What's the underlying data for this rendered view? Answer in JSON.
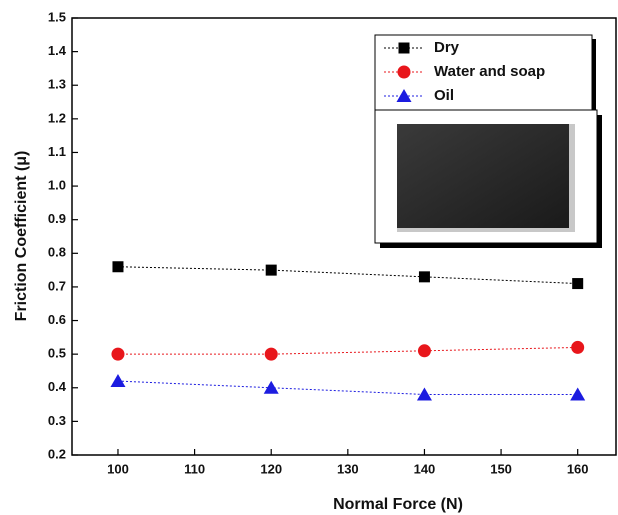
{
  "chart_data": {
    "type": "line",
    "y_label": "Friction Coefficient (μ)",
    "x_label": "Normal Force (N)",
    "x": [
      100,
      120,
      140,
      160
    ],
    "series": [
      {
        "name": "Dry",
        "color": "#000000",
        "marker": "square",
        "values": [
          0.76,
          0.75,
          0.73,
          0.71
        ]
      },
      {
        "name": "Water and soap",
        "color": "#e8161b",
        "marker": "circle",
        "values": [
          0.5,
          0.5,
          0.51,
          0.52
        ]
      },
      {
        "name": "Oil",
        "color": "#1c1ce0",
        "marker": "triangle",
        "values": [
          0.42,
          0.4,
          0.38,
          0.38
        ]
      }
    ],
    "xlim": [
      94,
      165
    ],
    "xticks": [
      100,
      110,
      120,
      130,
      140,
      150,
      160
    ],
    "ylim": [
      0.2,
      1.5
    ],
    "yticks": [
      0.2,
      0.3,
      0.4,
      0.5,
      0.6,
      0.7,
      0.8,
      0.9,
      {
        "value": 1,
        "label": "1.0"
      },
      1.1,
      1.2,
      1.3,
      1.4,
      1.5
    ],
    "legend": "upper-right"
  }
}
